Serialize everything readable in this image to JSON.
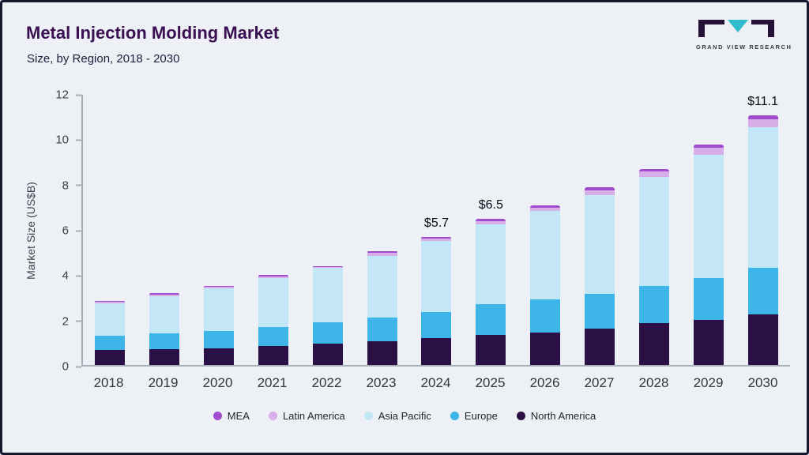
{
  "header": {
    "title": "Metal Injection Molding Market",
    "subtitle": "Size, by Region, 2018 - 2030",
    "logo_text": "GRAND VIEW RESEARCH"
  },
  "chart_data": {
    "type": "bar",
    "stacked": true,
    "title": "Metal Injection Molding Market Size, by Region, 2018 - 2030",
    "xlabel": "",
    "ylabel": "Market Size (US$B)",
    "ylim": [
      0,
      12
    ],
    "yticks": [
      0,
      2,
      4,
      6,
      8,
      10,
      12
    ],
    "grid": false,
    "legend_position": "bottom",
    "categories": [
      "2018",
      "2019",
      "2020",
      "2021",
      "2022",
      "2023",
      "2024",
      "2025",
      "2026",
      "2027",
      "2028",
      "2029",
      "2030"
    ],
    "series": [
      {
        "name": "North America",
        "color": "#2b1045",
        "values": [
          0.65,
          0.7,
          0.75,
          0.85,
          0.95,
          1.05,
          1.2,
          1.35,
          1.45,
          1.6,
          1.85,
          2.0,
          2.25
        ]
      },
      {
        "name": "Europe",
        "color": "#3eb5e8",
        "values": [
          0.65,
          0.7,
          0.75,
          0.85,
          0.95,
          1.05,
          1.15,
          1.35,
          1.45,
          1.55,
          1.65,
          1.85,
          2.05
        ]
      },
      {
        "name": "Asia Pacific",
        "color": "#c4e7f8",
        "values": [
          1.45,
          1.65,
          1.9,
          2.15,
          2.4,
          2.75,
          3.15,
          3.55,
          3.95,
          4.4,
          4.85,
          5.5,
          6.25
        ]
      },
      {
        "name": "Latin America",
        "color": "#d8aee8",
        "values": [
          0.06,
          0.09,
          0.06,
          0.09,
          0.06,
          0.12,
          0.12,
          0.15,
          0.15,
          0.2,
          0.25,
          0.3,
          0.35
        ]
      },
      {
        "name": "MEA",
        "color": "#a04cce",
        "values": [
          0.04,
          0.06,
          0.04,
          0.06,
          0.04,
          0.08,
          0.08,
          0.1,
          0.1,
          0.15,
          0.1,
          0.15,
          0.2
        ]
      }
    ],
    "totals": [
      2.85,
      3.2,
      3.5,
      4.0,
      4.4,
      5.05,
      5.7,
      6.5,
      7.1,
      7.9,
      8.7,
      9.8,
      11.1
    ],
    "annotations": [
      {
        "category": "2024",
        "text": "$5.7"
      },
      {
        "category": "2025",
        "text": "$6.5"
      },
      {
        "category": "2030",
        "text": "$11.1"
      }
    ],
    "legend": [
      "MEA",
      "Latin America",
      "Asia Pacific",
      "Europe",
      "North America"
    ]
  }
}
